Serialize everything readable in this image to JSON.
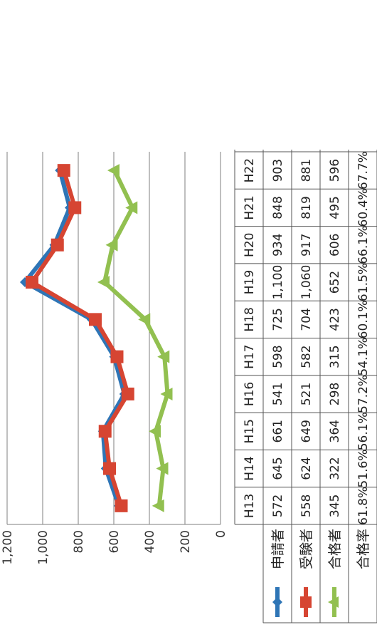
{
  "chart_data": {
    "type": "line",
    "title": "",
    "xlabel": "",
    "ylabel": "",
    "ylim": [
      0,
      1200
    ],
    "yticks": [
      "0",
      "200",
      "400",
      "600",
      "800",
      "1,000",
      "1,200"
    ],
    "grid": true,
    "categories": [
      "H13",
      "H14",
      "H15",
      "H16",
      "H17",
      "H18",
      "H19",
      "H20",
      "H21",
      "H22"
    ],
    "series": [
      {
        "name": "申請者",
        "color": "#2e75b6",
        "marker": "diamond",
        "values": [
          572,
          645,
          661,
          541,
          598,
          725,
          1100,
          934,
          848,
          903
        ],
        "labels": [
          "572",
          "645",
          "661",
          "541",
          "598",
          "725",
          "1,100",
          "934",
          "848",
          "903"
        ]
      },
      {
        "name": "受験者",
        "color": "#d64532",
        "marker": "square",
        "values": [
          558,
          624,
          649,
          521,
          582,
          704,
          1060,
          917,
          819,
          881
        ],
        "labels": [
          "558",
          "624",
          "649",
          "521",
          "582",
          "704",
          "1,060",
          "917",
          "819",
          "881"
        ]
      },
      {
        "name": "合格者",
        "color": "#92c050",
        "marker": "triangle",
        "values": [
          345,
          322,
          364,
          298,
          315,
          423,
          652,
          606,
          495,
          596
        ],
        "labels": [
          "345",
          "322",
          "364",
          "298",
          "315",
          "423",
          "652",
          "606",
          "495",
          "596"
        ]
      }
    ],
    "rate_row": {
      "name": "合格率",
      "labels": [
        "61.8%",
        "51.6%",
        "56.1%",
        "57.2%",
        "54.1%",
        "60.1%",
        "61.5%",
        "66.1%",
        "60.4%",
        "67.7%"
      ]
    }
  }
}
